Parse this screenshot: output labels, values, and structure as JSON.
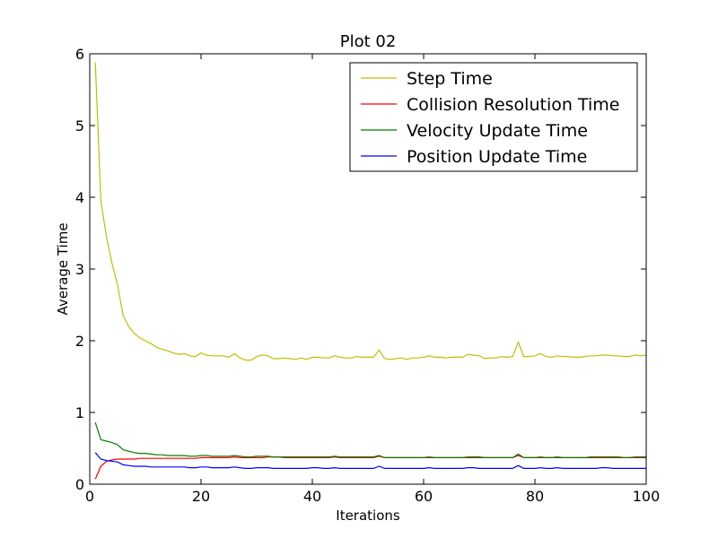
{
  "chart_data": {
    "type": "line",
    "title": "Plot 02",
    "xlabel": "Iterations",
    "ylabel": "Average Time",
    "xlim": [
      0,
      100
    ],
    "ylim": [
      0,
      6
    ],
    "xticks": [
      "0",
      "20",
      "40",
      "60",
      "80",
      "100"
    ],
    "yticks": [
      "0",
      "1",
      "2",
      "3",
      "4",
      "5",
      "6"
    ],
    "grid": false,
    "legend_position": "top-right",
    "x": [
      1,
      2,
      3,
      4,
      5,
      6,
      7,
      8,
      9,
      10,
      11,
      12,
      13,
      14,
      15,
      16,
      17,
      18,
      19,
      20,
      21,
      22,
      23,
      24,
      25,
      26,
      27,
      28,
      29,
      30,
      31,
      32,
      33,
      34,
      35,
      36,
      37,
      38,
      39,
      40,
      41,
      42,
      43,
      44,
      45,
      46,
      47,
      48,
      49,
      50,
      51,
      52,
      53,
      54,
      55,
      56,
      57,
      58,
      59,
      60,
      61,
      62,
      63,
      64,
      65,
      66,
      67,
      68,
      69,
      70,
      71,
      72,
      73,
      74,
      75,
      76,
      77,
      78,
      79,
      80,
      81,
      82,
      83,
      84,
      85,
      86,
      87,
      88,
      89,
      90,
      91,
      92,
      93,
      94,
      95,
      96,
      97,
      98,
      99,
      100
    ],
    "series": [
      {
        "name": "Step Time",
        "color": "#bfbf00",
        "values": [
          5.88,
          3.95,
          3.45,
          3.08,
          2.78,
          2.35,
          2.2,
          2.1,
          2.04,
          2.0,
          1.96,
          1.91,
          1.88,
          1.86,
          1.83,
          1.81,
          1.82,
          1.79,
          1.78,
          1.83,
          1.8,
          1.79,
          1.79,
          1.79,
          1.77,
          1.82,
          1.76,
          1.73,
          1.73,
          1.78,
          1.8,
          1.79,
          1.75,
          1.75,
          1.76,
          1.75,
          1.74,
          1.76,
          1.74,
          1.77,
          1.77,
          1.76,
          1.76,
          1.79,
          1.77,
          1.76,
          1.76,
          1.78,
          1.77,
          1.77,
          1.77,
          1.87,
          1.75,
          1.74,
          1.75,
          1.76,
          1.74,
          1.76,
          1.76,
          1.77,
          1.79,
          1.77,
          1.77,
          1.76,
          1.77,
          1.77,
          1.77,
          1.81,
          1.8,
          1.79,
          1.75,
          1.76,
          1.76,
          1.78,
          1.77,
          1.78,
          1.98,
          1.78,
          1.78,
          1.79,
          1.82,
          1.78,
          1.77,
          1.79,
          1.78,
          1.78,
          1.77,
          1.77,
          1.78,
          1.79,
          1.79,
          1.8,
          1.8,
          1.79,
          1.79,
          1.78,
          1.78,
          1.8,
          1.79,
          1.8
        ]
      },
      {
        "name": "Collision Resolution Time",
        "color": "#ff0000",
        "values": [
          0.07,
          0.25,
          0.32,
          0.34,
          0.35,
          0.35,
          0.35,
          0.35,
          0.36,
          0.36,
          0.36,
          0.36,
          0.36,
          0.36,
          0.36,
          0.36,
          0.36,
          0.36,
          0.36,
          0.37,
          0.37,
          0.37,
          0.37,
          0.37,
          0.37,
          0.38,
          0.37,
          0.37,
          0.37,
          0.37,
          0.37,
          0.38,
          0.38,
          0.38,
          0.37,
          0.37,
          0.37,
          0.37,
          0.37,
          0.37,
          0.37,
          0.37,
          0.37,
          0.38,
          0.37,
          0.37,
          0.37,
          0.37,
          0.37,
          0.37,
          0.37,
          0.39,
          0.37,
          0.37,
          0.37,
          0.37,
          0.37,
          0.37,
          0.37,
          0.37,
          0.37,
          0.37,
          0.37,
          0.37,
          0.37,
          0.37,
          0.37,
          0.37,
          0.37,
          0.37,
          0.37,
          0.37,
          0.37,
          0.37,
          0.37,
          0.37,
          0.4,
          0.37,
          0.37,
          0.37,
          0.37,
          0.37,
          0.37,
          0.37,
          0.37,
          0.37,
          0.37,
          0.37,
          0.37,
          0.37,
          0.37,
          0.37,
          0.37,
          0.37,
          0.37,
          0.37,
          0.37,
          0.37,
          0.37,
          0.37
        ]
      },
      {
        "name": "Velocity Update Time",
        "color": "#008000",
        "values": [
          0.86,
          0.62,
          0.6,
          0.58,
          0.55,
          0.48,
          0.46,
          0.44,
          0.43,
          0.43,
          0.42,
          0.41,
          0.41,
          0.4,
          0.4,
          0.4,
          0.4,
          0.39,
          0.39,
          0.4,
          0.4,
          0.39,
          0.39,
          0.39,
          0.39,
          0.4,
          0.39,
          0.38,
          0.38,
          0.39,
          0.39,
          0.39,
          0.38,
          0.38,
          0.38,
          0.38,
          0.38,
          0.38,
          0.38,
          0.38,
          0.38,
          0.38,
          0.38,
          0.39,
          0.38,
          0.38,
          0.38,
          0.38,
          0.38,
          0.38,
          0.38,
          0.4,
          0.37,
          0.37,
          0.37,
          0.37,
          0.37,
          0.37,
          0.37,
          0.37,
          0.38,
          0.37,
          0.37,
          0.37,
          0.37,
          0.37,
          0.37,
          0.38,
          0.38,
          0.38,
          0.37,
          0.37,
          0.37,
          0.37,
          0.37,
          0.37,
          0.42,
          0.37,
          0.37,
          0.37,
          0.38,
          0.37,
          0.37,
          0.38,
          0.37,
          0.37,
          0.37,
          0.37,
          0.37,
          0.38,
          0.38,
          0.38,
          0.38,
          0.38,
          0.38,
          0.37,
          0.37,
          0.38,
          0.38,
          0.38
        ]
      },
      {
        "name": "Position Update Time",
        "color": "#0000ff",
        "values": [
          0.44,
          0.35,
          0.33,
          0.32,
          0.31,
          0.27,
          0.26,
          0.25,
          0.25,
          0.25,
          0.24,
          0.24,
          0.24,
          0.24,
          0.24,
          0.24,
          0.24,
          0.23,
          0.23,
          0.24,
          0.24,
          0.23,
          0.23,
          0.23,
          0.23,
          0.24,
          0.23,
          0.22,
          0.22,
          0.23,
          0.23,
          0.23,
          0.22,
          0.22,
          0.22,
          0.22,
          0.22,
          0.22,
          0.22,
          0.23,
          0.23,
          0.22,
          0.22,
          0.23,
          0.22,
          0.22,
          0.22,
          0.22,
          0.22,
          0.22,
          0.22,
          0.25,
          0.22,
          0.22,
          0.22,
          0.22,
          0.22,
          0.22,
          0.22,
          0.22,
          0.23,
          0.22,
          0.22,
          0.22,
          0.22,
          0.22,
          0.22,
          0.23,
          0.23,
          0.22,
          0.22,
          0.22,
          0.22,
          0.22,
          0.22,
          0.22,
          0.26,
          0.22,
          0.22,
          0.22,
          0.23,
          0.22,
          0.22,
          0.23,
          0.22,
          0.22,
          0.22,
          0.22,
          0.22,
          0.22,
          0.22,
          0.23,
          0.23,
          0.22,
          0.22,
          0.22,
          0.22,
          0.22,
          0.22,
          0.22
        ]
      }
    ]
  }
}
